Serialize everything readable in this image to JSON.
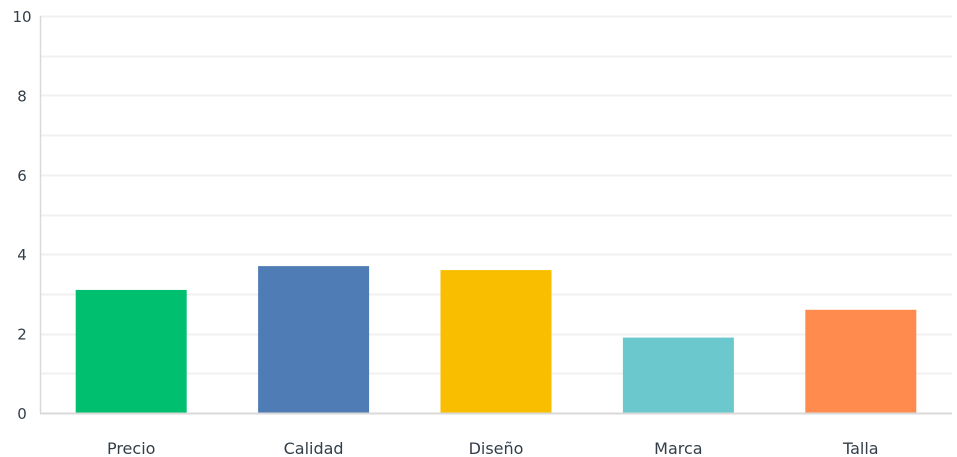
{
  "chart_data": {
    "type": "bar",
    "categories": [
      "Precio",
      "Calidad",
      "Diseño",
      "Marca",
      "Talla"
    ],
    "values": [
      3.1,
      3.7,
      3.6,
      1.9,
      2.6
    ],
    "colors": [
      "#00bf6f",
      "#507cb6",
      "#f9be00",
      "#6bc8cd",
      "#ff8b4f"
    ],
    "yticks": [
      "0",
      "2",
      "4",
      "6",
      "8",
      "10"
    ],
    "ylim": [
      0,
      10
    ],
    "title": "",
    "xlabel": "",
    "ylabel": "",
    "grid": true,
    "gridline_step": 1,
    "gridline_color": "#f0f0f0",
    "axis_color": "#d9d9d9"
  }
}
